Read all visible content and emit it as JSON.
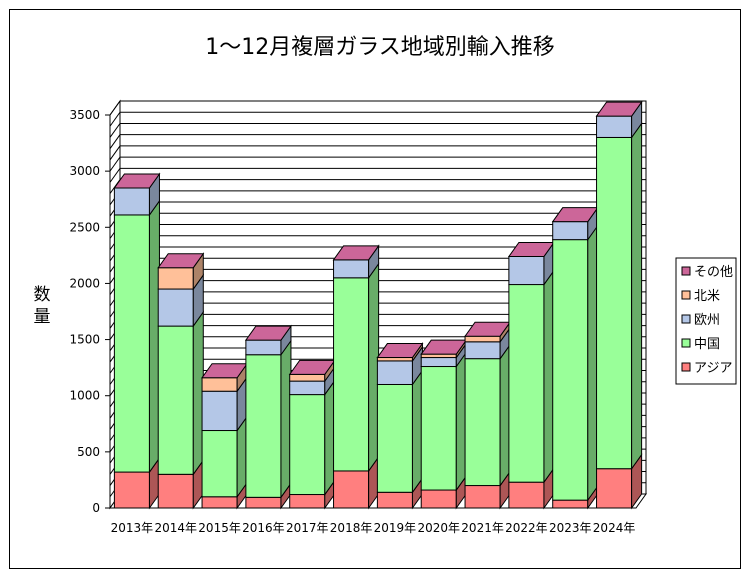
{
  "chart_data": {
    "type": "bar",
    "stacked": true,
    "three_d": true,
    "title": "1～12月複層ガラス地域別輸入推移",
    "xlabel": "",
    "ylabel": "数量",
    "ylim": [
      0,
      3500
    ],
    "yticks": [
      0,
      500,
      1000,
      1500,
      2000,
      2500,
      3000,
      3500
    ],
    "grid": true,
    "legend_position": "right",
    "categories": [
      "2013年",
      "2014年",
      "2015年",
      "2016年",
      "2017年",
      "2018年",
      "2019年",
      "2020年",
      "2021年",
      "2022年",
      "2023年",
      "2024年"
    ],
    "series": [
      {
        "name": "アジア",
        "color": "#ff7f7f",
        "values": [
          320,
          300,
          100,
          95,
          120,
          330,
          140,
          160,
          200,
          230,
          70,
          350
        ]
      },
      {
        "name": "中国",
        "color": "#99ff99",
        "values": [
          2290,
          1320,
          590,
          1270,
          890,
          1720,
          960,
          1100,
          1130,
          1760,
          2320,
          2950
        ]
      },
      {
        "name": "欧州",
        "color": "#b4c7e7",
        "values": [
          240,
          330,
          350,
          130,
          120,
          160,
          210,
          80,
          150,
          250,
          160,
          190
        ]
      },
      {
        "name": "北米",
        "color": "#ffc099",
        "values": [
          0,
          190,
          120,
          0,
          60,
          0,
          30,
          30,
          50,
          0,
          0,
          0
        ]
      },
      {
        "name": "その他",
        "color": "#cc6699",
        "values": [
          0,
          0,
          0,
          0,
          0,
          0,
          0,
          0,
          0,
          0,
          0,
          0
        ]
      }
    ],
    "legend_order": [
      "その他",
      "北米",
      "欧州",
      "中国",
      "アジア"
    ]
  }
}
